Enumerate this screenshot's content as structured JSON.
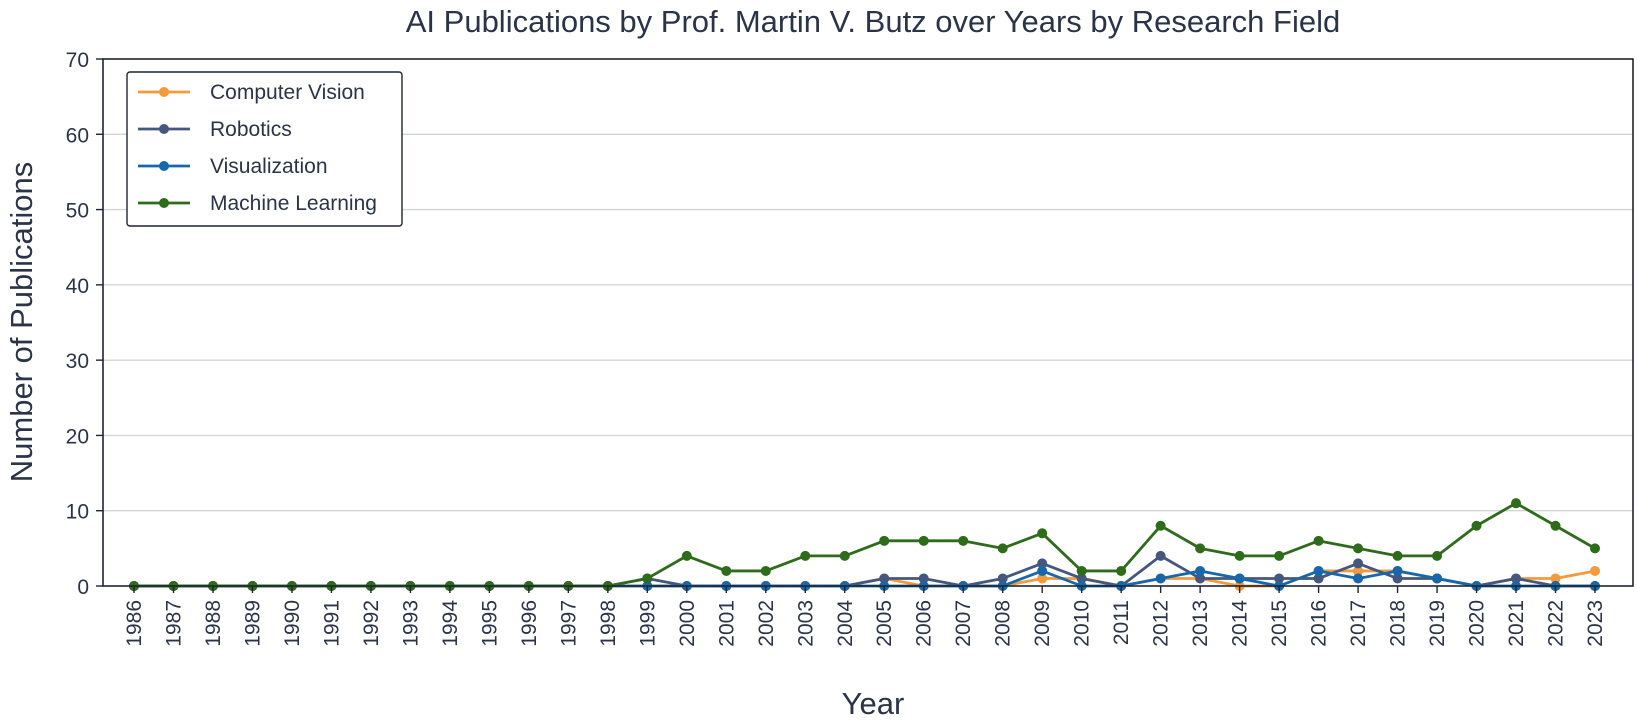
{
  "chart_data": {
    "type": "line",
    "title": "AI Publications by Prof. Martin V. Butz over Years by Research Field",
    "xlabel": "Year",
    "ylabel": "Number of Publications",
    "ylim": [
      0,
      70
    ],
    "yticks": [
      0,
      10,
      20,
      30,
      40,
      50,
      60,
      70
    ],
    "grid": "horizontal",
    "legend_position": "top-left",
    "x": [
      "1986",
      "1987",
      "1988",
      "1989",
      "1990",
      "1991",
      "1992",
      "1993",
      "1994",
      "1995",
      "1996",
      "1997",
      "1998",
      "1999",
      "2000",
      "2001",
      "2002",
      "2003",
      "2004",
      "2005",
      "2006",
      "2007",
      "2008",
      "2009",
      "2010",
      "2011",
      "2012",
      "2013",
      "2014",
      "2015",
      "2016",
      "2017",
      "2018",
      "2019",
      "2020",
      "2021",
      "2022",
      "2023"
    ],
    "series": [
      {
        "name": "Computer Vision",
        "color": "#f39a3c",
        "values": [
          0,
          0,
          0,
          0,
          0,
          0,
          0,
          0,
          0,
          0,
          0,
          0,
          0,
          0,
          0,
          0,
          0,
          0,
          0,
          1,
          0,
          0,
          0,
          1,
          1,
          0,
          1,
          1,
          0,
          0,
          2,
          2,
          2,
          1,
          0,
          1,
          1,
          2
        ]
      },
      {
        "name": "Robotics",
        "color": "#46577f",
        "values": [
          0,
          0,
          0,
          0,
          0,
          0,
          0,
          0,
          0,
          0,
          0,
          0,
          0,
          1,
          0,
          0,
          0,
          0,
          0,
          1,
          1,
          0,
          1,
          3,
          1,
          0,
          4,
          1,
          1,
          1,
          1,
          3,
          1,
          1,
          0,
          1,
          0,
          0
        ]
      },
      {
        "name": "Visualization",
        "color": "#1768ab",
        "values": [
          0,
          0,
          0,
          0,
          0,
          0,
          0,
          0,
          0,
          0,
          0,
          0,
          0,
          0,
          0,
          0,
          0,
          0,
          0,
          0,
          0,
          0,
          0,
          2,
          0,
          0,
          1,
          2,
          1,
          0,
          2,
          1,
          2,
          1,
          0,
          0,
          0,
          0
        ]
      },
      {
        "name": "Machine Learning",
        "color": "#2e6b1b",
        "values": [
          0,
          0,
          0,
          0,
          0,
          0,
          0,
          0,
          0,
          0,
          0,
          0,
          0,
          1,
          4,
          2,
          2,
          4,
          4,
          6,
          6,
          6,
          5,
          7,
          2,
          2,
          8,
          5,
          4,
          4,
          6,
          5,
          4,
          4,
          8,
          11,
          8,
          5
        ]
      }
    ]
  }
}
